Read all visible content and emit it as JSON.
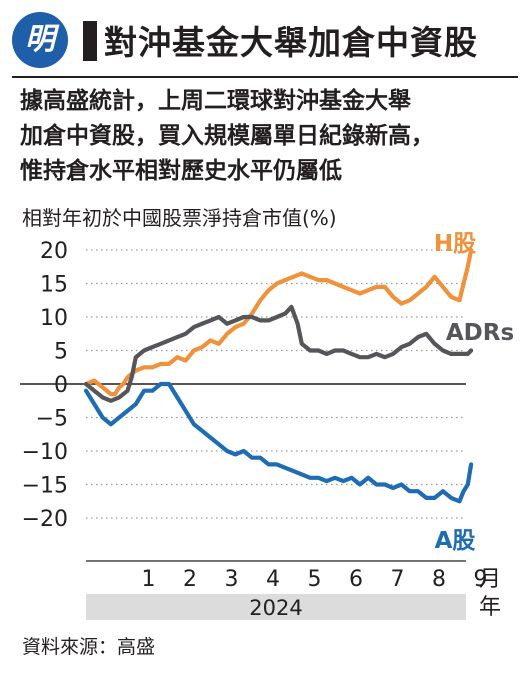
{
  "header": {
    "logo_text": "明",
    "title": "對沖基金大舉加倉中資股"
  },
  "subtitle_lines": [
    "據高盛統計，上周二環球對沖基金大舉",
    "加倉中資股，買入規模屬單日紀錄新高，",
    "惟持倉水平相對歷史水平仍屬低"
  ],
  "source": "資料來源：高盛",
  "colors": {
    "h_shares": "#f0913c",
    "adrs": "#55555a",
    "a_shares": "#1e6cb3",
    "year_band": "#dcdcdc",
    "logo": "#1f5fa9"
  },
  "chart_data": {
    "type": "line",
    "ylabel": "相對年初於中國股票淨持倉市值(%)",
    "ylim": [
      -23,
      23
    ],
    "xlim": [
      0,
      9.5
    ],
    "yticks": [
      20,
      15,
      10,
      5,
      0,
      -5,
      -10,
      -15,
      -20
    ],
    "ytick_labels": [
      "20",
      "15",
      "10",
      "5",
      "0",
      "−5",
      "−10",
      "−15",
      "−20"
    ],
    "xticks": [
      1,
      2,
      3,
      4,
      5,
      6,
      7,
      8,
      9
    ],
    "xtick_labels": [
      "1",
      "2",
      "3",
      "4",
      "5",
      "6",
      "7",
      "8",
      "9"
    ],
    "x_unit": "月",
    "year_label": "2024",
    "year_unit": "年",
    "series": [
      {
        "name": "H股",
        "color_key": "h_shares",
        "x": [
          0,
          0.2,
          0.4,
          0.5,
          0.6,
          0.7,
          0.8,
          0.9,
          1.0,
          1.2,
          1.4,
          1.6,
          1.8,
          2.0,
          2.2,
          2.4,
          2.6,
          2.8,
          3.0,
          3.2,
          3.4,
          3.6,
          3.8,
          4.0,
          4.2,
          4.4,
          4.6,
          4.8,
          5.0,
          5.2,
          5.4,
          5.6,
          5.8,
          6.0,
          6.2,
          6.4,
          6.6,
          6.8,
          7.0,
          7.2,
          7.4,
          7.6,
          7.8,
          8.0,
          8.2,
          8.4,
          8.6,
          8.8,
          9.0,
          9.1,
          9.2,
          9.28
        ],
        "y": [
          0,
          0.5,
          -0.5,
          -1,
          -1.5,
          -1.5,
          -0.5,
          0,
          1,
          2,
          2.5,
          2.5,
          3,
          3,
          4,
          3.5,
          5,
          5.5,
          6.5,
          6,
          7.5,
          8.5,
          9,
          10.5,
          12.5,
          14,
          15,
          15.5,
          16,
          16.5,
          16,
          15.5,
          15.5,
          15,
          14.5,
          14,
          13.5,
          14,
          14.5,
          14.5,
          13,
          12,
          12.5,
          13.5,
          14.5,
          16,
          14.5,
          13,
          12.5,
          15,
          17.5,
          20
        ]
      },
      {
        "name": "ADRs",
        "color_key": "adrs",
        "x": [
          0,
          0.2,
          0.4,
          0.6,
          0.8,
          1.0,
          1.1,
          1.2,
          1.4,
          1.6,
          1.8,
          2.0,
          2.2,
          2.4,
          2.6,
          2.8,
          3.0,
          3.2,
          3.4,
          3.6,
          3.8,
          4.0,
          4.2,
          4.4,
          4.6,
          4.8,
          4.95,
          5.1,
          5.2,
          5.4,
          5.6,
          5.8,
          6.0,
          6.2,
          6.4,
          6.6,
          6.8,
          7.0,
          7.2,
          7.4,
          7.6,
          7.8,
          8.0,
          8.2,
          8.4,
          8.6,
          8.8,
          9.0,
          9.2,
          9.28
        ],
        "y": [
          0,
          -1,
          -2,
          -2.5,
          -2,
          -1,
          1,
          4,
          5,
          5.5,
          6,
          6.5,
          7,
          7.5,
          8.5,
          9,
          9.5,
          10,
          9,
          9.5,
          10,
          10,
          9.5,
          9.5,
          10,
          10.5,
          11.5,
          9,
          6,
          5,
          5,
          4.5,
          5,
          5,
          4.5,
          4,
          4,
          4.5,
          4,
          4.5,
          5.5,
          6,
          7,
          7.5,
          6,
          5,
          4.5,
          4.5,
          4.5,
          5
        ]
      },
      {
        "name": "A股",
        "color_key": "a_shares",
        "x": [
          0,
          0.2,
          0.4,
          0.6,
          0.8,
          1.0,
          1.2,
          1.4,
          1.6,
          1.8,
          2.0,
          2.2,
          2.4,
          2.6,
          2.8,
          3.0,
          3.2,
          3.4,
          3.6,
          3.8,
          4.0,
          4.2,
          4.4,
          4.6,
          4.8,
          5.0,
          5.2,
          5.4,
          5.6,
          5.8,
          6.0,
          6.2,
          6.4,
          6.6,
          6.8,
          7.0,
          7.2,
          7.4,
          7.6,
          7.8,
          8.0,
          8.2,
          8.4,
          8.6,
          8.8,
          9.0,
          9.1,
          9.2,
          9.28
        ],
        "y": [
          -1,
          -3,
          -5,
          -6,
          -5,
          -4,
          -3,
          -1,
          -1,
          0,
          0,
          -2,
          -4,
          -6,
          -7,
          -8,
          -9,
          -10,
          -10.5,
          -10,
          -11,
          -11,
          -12,
          -12,
          -12.5,
          -13,
          -13.5,
          -14,
          -14,
          -14.5,
          -14,
          -14.5,
          -14,
          -15,
          -14,
          -15,
          -15,
          -15.5,
          -15,
          -16,
          -16,
          -17,
          -17,
          -16,
          -17,
          -17.5,
          -16,
          -15,
          -12
        ]
      }
    ]
  }
}
